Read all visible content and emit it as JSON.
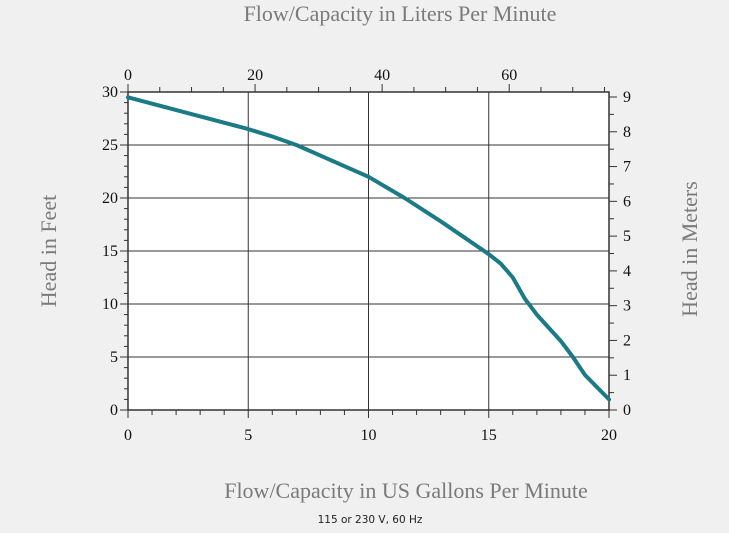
{
  "chart_data": {
    "type": "line",
    "title_top": "Flow/Capacity in Liters Per Minute",
    "xlabel": "Flow/Capacity in US Gallons Per Minute",
    "ylabel": "Head in Feet",
    "ylabel_right": "Head in Meters",
    "note": "115 or 230 V, 60 Hz",
    "xlim": [
      0,
      20
    ],
    "ylim": [
      0,
      30
    ],
    "x_ticks": [
      "0",
      "5",
      "10",
      "15",
      "20"
    ],
    "y_ticks": [
      "0",
      "5",
      "10",
      "15",
      "20",
      "25",
      "30"
    ],
    "x_top_ticks": [
      "0",
      "20",
      "40",
      "60"
    ],
    "y_right_ticks": [
      "0",
      "1",
      "2",
      "3",
      "4",
      "5",
      "6",
      "7",
      "8",
      "9"
    ],
    "grid": true,
    "line_color": "#1a7a85",
    "series": [
      {
        "x": [
          0,
          2.5,
          5,
          6,
          7,
          8,
          10,
          11.5,
          13,
          15,
          15.5,
          16,
          16.5,
          17,
          18,
          18.5,
          19,
          20
        ],
        "y": [
          29.5,
          28,
          26.5,
          25.8,
          25,
          24,
          22,
          20,
          17.8,
          14.7,
          13.8,
          12.5,
          10.5,
          9,
          6.5,
          5,
          3.3,
          1
        ]
      }
    ]
  }
}
